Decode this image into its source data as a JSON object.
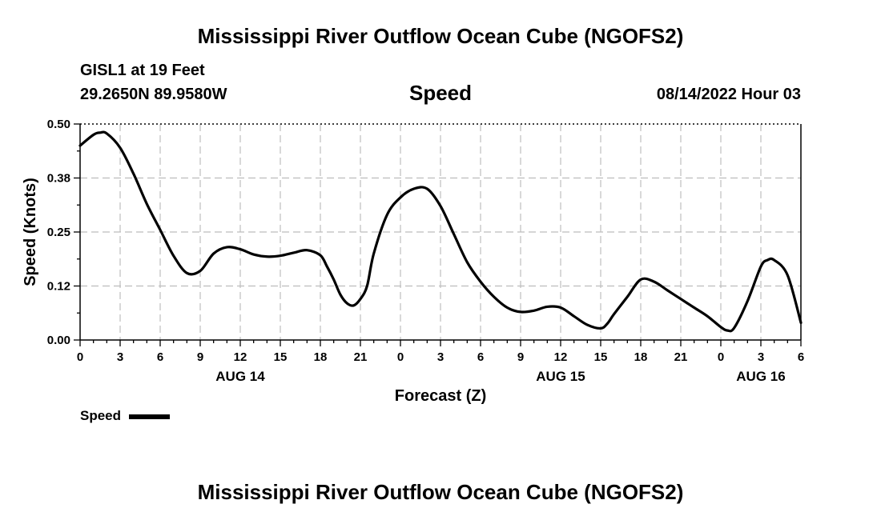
{
  "page": {
    "title": "Mississippi River Outflow Ocean Cube (NGOFS2)",
    "bottom_title": "Mississippi River Outflow Ocean Cube (NGOFS2)"
  },
  "station": {
    "name": "GISL1 at 19 Feet",
    "coords": "29.2650N  89.9580W"
  },
  "panel": {
    "title": "Speed",
    "datetime": "08/14/2022 Hour 03"
  },
  "chart_data": {
    "type": "line",
    "title": "Speed",
    "xlabel": "Forecast (Z)",
    "ylabel": "Speed (Knots)",
    "x_unit": "hours since 08/14/2022 00Z",
    "xlim": [
      -3,
      51
    ],
    "ylim": [
      0,
      0.5
    ],
    "grid": true,
    "legend": "bottom-left",
    "yticks": [
      "0.00",
      "0.12",
      "0.25",
      "0.38",
      "0.50"
    ],
    "xticks": [
      {
        "label": "0",
        "x": -3
      },
      {
        "label": "3",
        "x": 0
      },
      {
        "label": "6",
        "x": 3
      },
      {
        "label": "9",
        "x": 6
      },
      {
        "label": "12",
        "x": 9
      },
      {
        "label": "15",
        "x": 12
      },
      {
        "label": "18",
        "x": 15
      },
      {
        "label": "21",
        "x": 18
      },
      {
        "label": "0",
        "x": 21
      },
      {
        "label": "3",
        "x": 24
      },
      {
        "label": "6",
        "x": 27
      },
      {
        "label": "9",
        "x": 30
      },
      {
        "label": "12",
        "x": 33
      },
      {
        "label": "15",
        "x": 36
      },
      {
        "label": "18",
        "x": 39
      },
      {
        "label": "21",
        "x": 42
      },
      {
        "label": "0",
        "x": 45
      },
      {
        "label": "3",
        "x": 48
      },
      {
        "label": "6",
        "x": 51
      }
    ],
    "date_labels": [
      {
        "label": "AUG 14",
        "x": 9
      },
      {
        "label": "AUG 15",
        "x": 33
      },
      {
        "label": "AUG 16",
        "x": 48
      }
    ],
    "series": [
      {
        "name": "Speed",
        "color": "#000000",
        "x": [
          -3,
          -2,
          -1.5,
          -1,
          0,
          1,
          2,
          3,
          4,
          5,
          6,
          7,
          8,
          9,
          10,
          11,
          12,
          13,
          14,
          15,
          15.5,
          16,
          16.5,
          17,
          17.5,
          18,
          18.5,
          19,
          20,
          21,
          22,
          23,
          24,
          25,
          26,
          27,
          28,
          29,
          30,
          31,
          32,
          33,
          34,
          35,
          36,
          36.5,
          37,
          38,
          39,
          40,
          41,
          42,
          43,
          44,
          45,
          45.5,
          46,
          47,
          48,
          48.5,
          49,
          50,
          51
        ],
        "values": [
          0.45,
          0.475,
          0.48,
          0.478,
          0.445,
          0.385,
          0.315,
          0.255,
          0.195,
          0.155,
          0.16,
          0.2,
          0.215,
          0.21,
          0.198,
          0.193,
          0.195,
          0.202,
          0.208,
          0.196,
          0.17,
          0.14,
          0.105,
          0.085,
          0.08,
          0.095,
          0.125,
          0.2,
          0.29,
          0.33,
          0.35,
          0.35,
          0.31,
          0.245,
          0.18,
          0.135,
          0.1,
          0.075,
          0.065,
          0.068,
          0.077,
          0.075,
          0.055,
          0.035,
          0.027,
          0.038,
          0.06,
          0.1,
          0.14,
          0.135,
          0.115,
          0.095,
          0.075,
          0.055,
          0.03,
          0.022,
          0.028,
          0.09,
          0.17,
          0.185,
          0.185,
          0.15,
          0.04
        ]
      }
    ]
  }
}
